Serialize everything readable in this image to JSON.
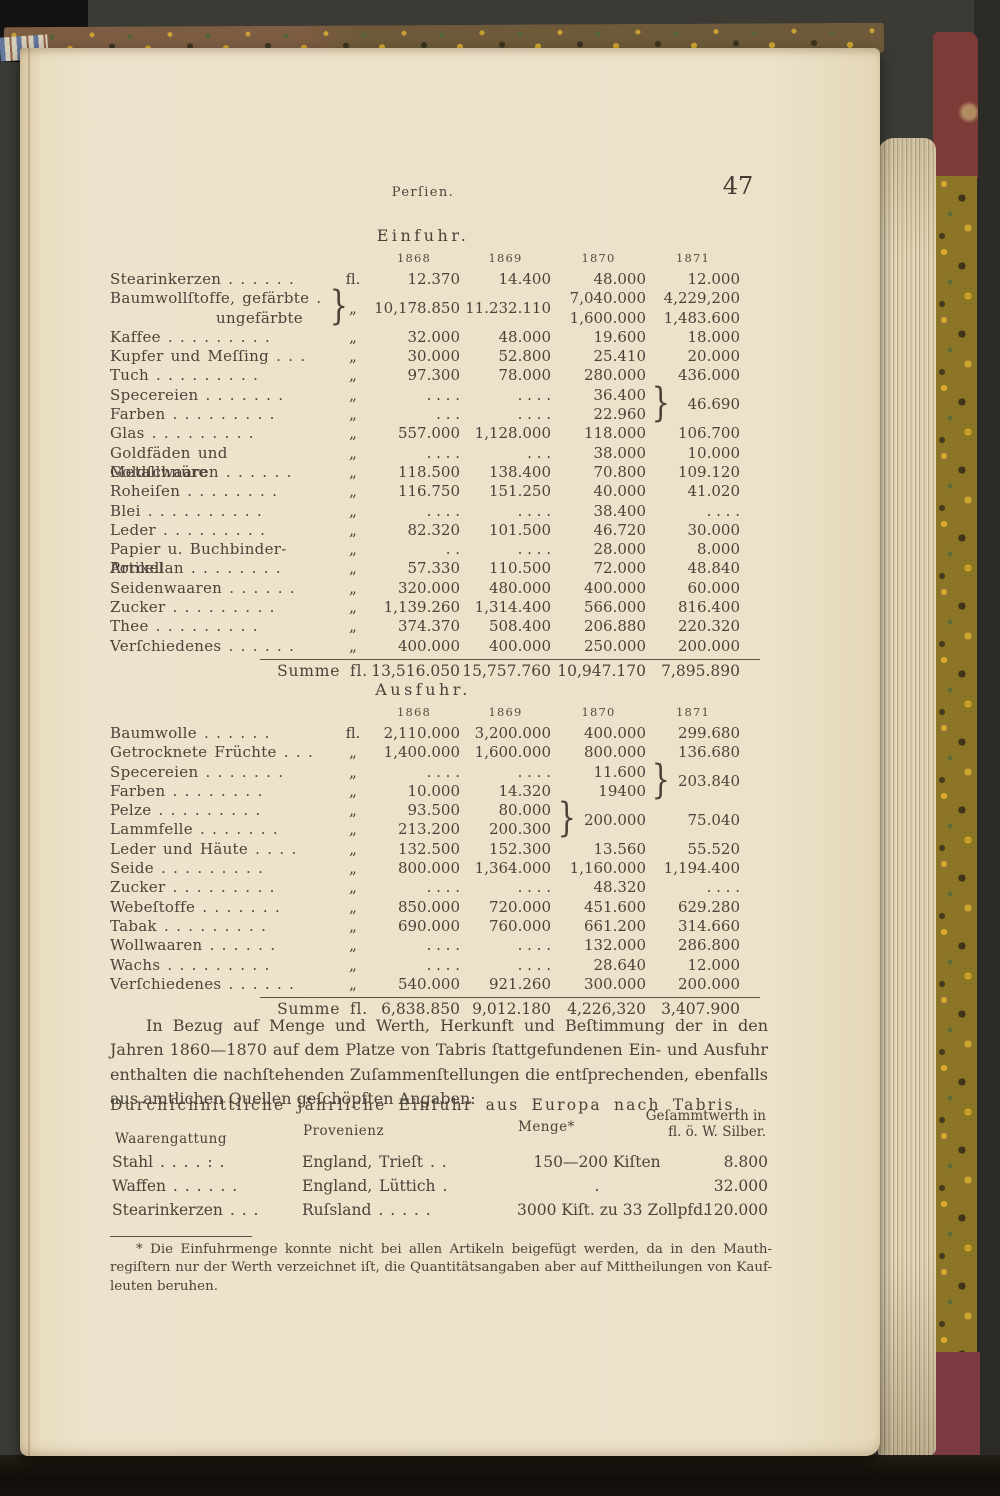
{
  "page": {
    "header": "Perſien.",
    "page_number": "47"
  },
  "glyphs": {
    "brace": "}"
  },
  "colors": {
    "paper": "#ece1c9",
    "ink": "#4b433a",
    "leather_red": "#7d3b38",
    "marble_gold": "#8d7527",
    "background": "#3b3a35"
  },
  "einfuhr": {
    "title": "Einfuhr.",
    "years": [
      "1868",
      "1869",
      "1870",
      "1871"
    ],
    "rows_pre": [
      {
        "label": "Stearinkerzen . . . . . .",
        "unit": "fl.",
        "v": [
          "12.370",
          "14.400",
          "48.000",
          "12.000"
        ]
      }
    ],
    "g_baumwoll": {
      "label1": "Baumwollſtoffe, gefärbte .",
      "label2": "ungefärbte",
      "unit": "„",
      "v1868": "10,178.850",
      "v1869": "11.232.110",
      "v1870a": "7,040.000",
      "v1870b": "1,600.000",
      "v1871a": "4,229,200",
      "v1871b": "1,483.600"
    },
    "rows_a": [
      {
        "label": "Kaffee . . . . . . . . .",
        "unit": "„",
        "v": [
          "32.000",
          "48.000",
          "19.600",
          "18.000"
        ]
      },
      {
        "label": "Kupfer und Meſſing . . .",
        "unit": "„",
        "v": [
          "30.000",
          "52.800",
          "25.410",
          "20.000"
        ]
      },
      {
        "label": "Tuch . . . . . . . . .",
        "unit": "„",
        "v": [
          "97.300",
          "78.000",
          "280.000",
          "436.000"
        ]
      }
    ],
    "g_spec": {
      "label1": "Specereien . . . . . . .",
      "label2": "Farben . . . . . . . . .",
      "unit1": "„",
      "unit2": "„",
      "v1868a": ". . . .",
      "v1868b": ". . .",
      "v1869a": ". . . .",
      "v1869b": ". . . .",
      "v1870a": "36.400",
      "v1870b": "22.960",
      "v1871": "46.690"
    },
    "rows_b": [
      {
        "label": "Glas . . . . . . . . .",
        "unit": "„",
        "v": [
          "557.000",
          "1,128.000",
          "118.000",
          "106.700"
        ]
      },
      {
        "label": "Goldfäden und Goldſchnüre",
        "unit": "„",
        "v": [
          ". . . .",
          ". . .",
          "38.000",
          "10.000"
        ]
      },
      {
        "label": "Metallwaaren . . . . . .",
        "unit": "„",
        "v": [
          "118.500",
          "138.400",
          "70.800",
          "109.120"
        ]
      },
      {
        "label": "Roheiſen . . . . . . . .",
        "unit": "„",
        "v": [
          "116.750",
          "151.250",
          "40.000",
          "41.020"
        ]
      },
      {
        "label": "Blei . . . . . . . . . .",
        "unit": "„",
        "v": [
          ". . . .",
          ". . . .",
          "38.400",
          ". . . ."
        ]
      },
      {
        "label": "Leder . . . . . . . . .",
        "unit": "„",
        "v": [
          "82.320",
          "101.500",
          "46.720",
          "30.000"
        ]
      },
      {
        "label": "Papier u. Buchbinder-Artikel",
        "unit": "„",
        "v": [
          ". .",
          ". . . .",
          "28.000",
          "8.000"
        ]
      },
      {
        "label": "Porcellan . . . . . . . .",
        "unit": "„",
        "v": [
          "57.330",
          "110.500",
          "72.000",
          "48.840"
        ]
      },
      {
        "label": "Seidenwaaren . . . . . .",
        "unit": "„",
        "v": [
          "320.000",
          "480.000",
          "400.000",
          "60.000"
        ]
      },
      {
        "label": "Zucker . . . . . . . . .",
        "unit": "„",
        "v": [
          "1,139.260",
          "1,314.400",
          "566.000",
          "816.400"
        ]
      },
      {
        "label": "Thee . . . . . . . . .",
        "unit": "„",
        "v": [
          "374.370",
          "508.400",
          "206.880",
          "220.320"
        ]
      },
      {
        "label": "Verſchiedenes . . . . . .",
        "unit": "„",
        "v": [
          "400.000",
          "400.000",
          "250.000",
          "200.000"
        ]
      }
    ],
    "summe_label": "Summe fl.",
    "summe": [
      "13,516.050",
      "15,757.760",
      "10,947.170",
      "7,895.890"
    ]
  },
  "ausfuhr": {
    "title": "Ausfuhr.",
    "years": [
      "1868",
      "1869",
      "1870",
      "1871"
    ],
    "rows_a": [
      {
        "label": "Baumwolle . . . . . .",
        "unit": "fl.",
        "v": [
          "2,110.000",
          "3,200.000",
          "400.000",
          "299.680"
        ]
      },
      {
        "label": "Getrocknete Früchte . . .",
        "unit": "„",
        "v": [
          "1,400.000",
          "1,600.000",
          "800.000",
          "136.680"
        ]
      }
    ],
    "g_spec": {
      "label1": "Specereien . . . . . . .",
      "label2": "Farben . . . . . . . .",
      "unit1": "„",
      "unit2": "„",
      "v1868a": ". . . .",
      "v1868b": "10.000",
      "v1869a": ". . . .",
      "v1869b": "14.320",
      "v1870a": "11.600",
      "v1870b": "19400",
      "v1871": "203.840"
    },
    "g_pelz": {
      "label1": "Pelze . . . . . . . . .",
      "label2": "Lammfelle . . . . . . .",
      "unit1": "„",
      "unit2": "„",
      "v1868a": "93.500",
      "v1868b": "213.200",
      "v1869a": "80.000",
      "v1869b": "200.300",
      "v1870": "200.000",
      "v1871": "75.040"
    },
    "rows_b": [
      {
        "label": "Leder und Häute . . . .",
        "unit": "„",
        "v": [
          "132.500",
          "152.300",
          "13.560",
          "55.520"
        ]
      },
      {
        "label": "Seide . . . . . . . . .",
        "unit": "„",
        "v": [
          "800.000",
          "1,364.000",
          "1,160.000",
          "1,194.400"
        ]
      },
      {
        "label": "Zucker . . . . . . . . .",
        "unit": "„",
        "v": [
          ". . . .",
          ". . . .",
          "48.320",
          ". . . ."
        ]
      },
      {
        "label": "Webeſtoffe . . . . . . .",
        "unit": "„",
        "v": [
          "850.000",
          "720.000",
          "451.600",
          "629.280"
        ]
      },
      {
        "label": "Tabak . . . . . . . . .",
        "unit": "„",
        "v": [
          "690.000",
          "760.000",
          "661.200",
          "314.660"
        ]
      },
      {
        "label": "Wollwaaren . . . . . .",
        "unit": "„",
        "v": [
          ". . . .",
          ". . . .",
          "132.000",
          "286.800"
        ]
      },
      {
        "label": "Wachs . . . . . . . . .",
        "unit": "„",
        "v": [
          ". . . .",
          ". . . .",
          "28.640",
          "12.000"
        ]
      },
      {
        "label": "Verſchiedenes . . . . . .",
        "unit": "„",
        "v": [
          "540.000",
          "921.260",
          "300.000",
          "200.000"
        ]
      }
    ],
    "summe_label": "Summe fl.",
    "summe": [
      "6,838.850",
      "9,012.180",
      "4,226,320",
      "3,407.900"
    ]
  },
  "paragraph": {
    "lines": [
      "In Bezug auf Menge und Werth, Herkunft und Beſtimmung der in den",
      "Jahren 1860—1870 auf dem Platze von Tabris ſtattgefundenen Ein- und Ausfuhr",
      "enthalten die nachſtehenden Zuſammenſtellungen die entſprechenden, ebenfalls",
      "aus amtlichen Quellen geſchöpften Angaben:"
    ]
  },
  "avg_table": {
    "title": "Durchſchnittliche jährliche Einfuhr aus Europa nach Tabris.",
    "headers": {
      "waare": "Waarengattung",
      "prov": "Provenienz",
      "menge": "Menge*",
      "werth1": "Geſammtwerth in",
      "werth2": "fl. ö. W. Silber."
    },
    "rows": [
      {
        "waare": "Stahl  . . . . : .",
        "prov": "England, Trieſt . .",
        "menge": "150—200 Kiſten",
        "werth": "8.800"
      },
      {
        "waare": "Waffen . . . . . .",
        "prov": "England, Lüttich .",
        "menge": ".",
        "werth": "32.000"
      },
      {
        "waare": "Stearinkerzen . . .",
        "prov": "Ruſsland . . . . .",
        "menge": "3000 Kiſt. zu 33 Zollpfd.",
        "werth": "120.000"
      }
    ]
  },
  "footnote": {
    "lines": [
      "* Die Einfuhrmenge konnte nicht bei allen Artikeln beigefügt werden, da in den Mauth-",
      "regiſtern nur der Werth verzeichnet iſt, die Quantitätsangaben aber auf Mittheilungen von Kauf-",
      "leuten beruhen."
    ]
  }
}
